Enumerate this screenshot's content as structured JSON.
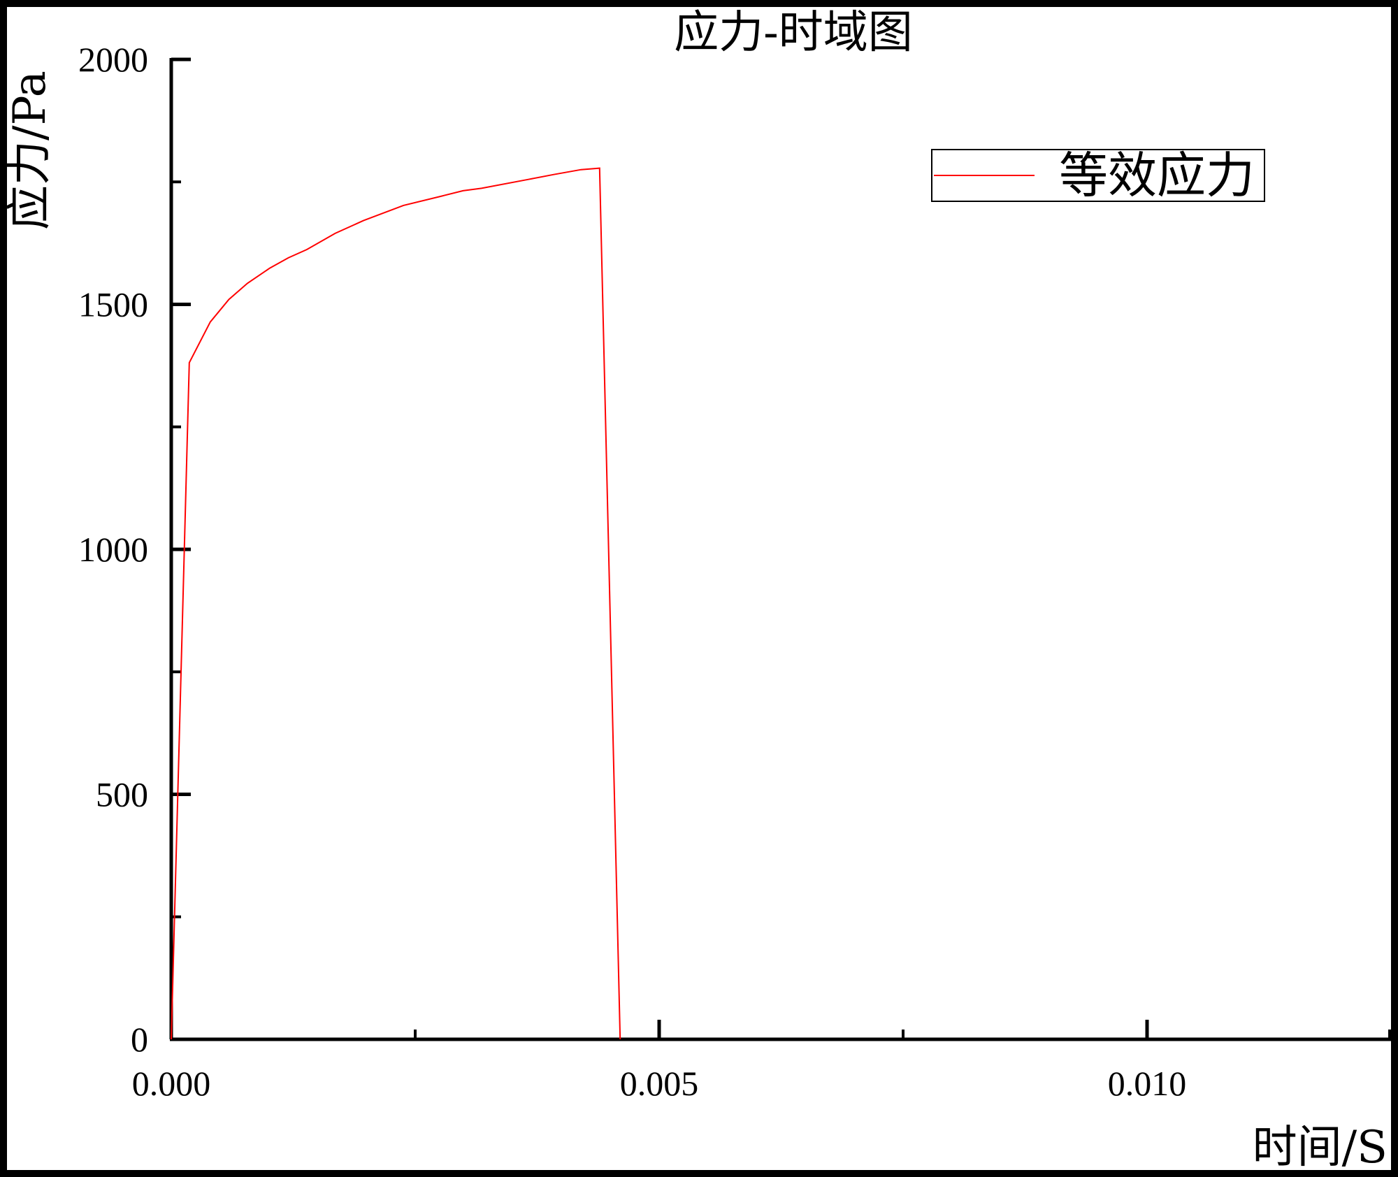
{
  "chart_data": {
    "type": "line",
    "title": "应力-时域图",
    "xlabel": "时间/S",
    "ylabel": "应力/Pa",
    "xlim": [
      0,
      0.0125
    ],
    "ylim": [
      0,
      2000
    ],
    "x_ticks": [
      "0.000",
      "0.005",
      "0.010"
    ],
    "x_tick_values": [
      0,
      0.005,
      0.01
    ],
    "y_ticks": [
      "0",
      "500",
      "1000",
      "1500",
      "2000"
    ],
    "y_tick_values": [
      0,
      500,
      1000,
      1500,
      2000
    ],
    "grid": false,
    "legend_position": "top-right",
    "series": [
      {
        "name": "等效应力",
        "color": "#ff0000",
        "x": [
          0,
          0.000185,
          0.0004,
          0.00059,
          0.00078,
          0.00101,
          0.0012,
          0.00139,
          0.00168,
          0.00197,
          0.00238,
          0.00277,
          0.00299,
          0.00318,
          0.00366,
          0.00392,
          0.0042,
          0.00439,
          0.0046
        ],
        "y": [
          0,
          1381,
          1464,
          1510,
          1543,
          1574,
          1595,
          1612,
          1645,
          1671,
          1702,
          1721,
          1732,
          1737,
          1755,
          1765,
          1775,
          1778,
          0
        ]
      }
    ]
  }
}
